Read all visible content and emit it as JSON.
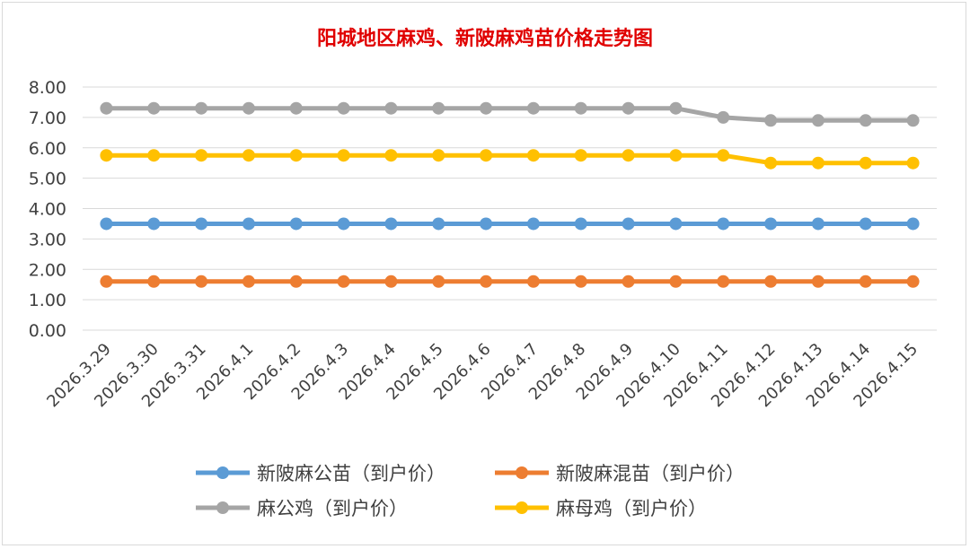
{
  "chart_data": {
    "type": "line",
    "title": "阳城地区麻鸡、新陂麻鸡苗价格走势图",
    "xlabel": "",
    "ylabel": "",
    "ylim": [
      0,
      8
    ],
    "yticks": [
      "0.00",
      "1.00",
      "2.00",
      "3.00",
      "4.00",
      "5.00",
      "6.00",
      "7.00",
      "8.00"
    ],
    "grid": true,
    "legend_position": "bottom",
    "categories": [
      "2026.3.29",
      "2026.3.30",
      "2026.3.31",
      "2026.4.1",
      "2026.4.2",
      "2026.4.3",
      "2026.4.4",
      "2026.4.5",
      "2026.4.6",
      "2026.4.7",
      "2026.4.8",
      "2026.4.9",
      "2026.4.10",
      "2026.4.11",
      "2026.4.12",
      "2026.4.13",
      "2026.4.14",
      "2026.4.15"
    ],
    "series": [
      {
        "name": "新陂麻公苗（到户价）",
        "color": "#5b9bd5",
        "values": [
          3.5,
          3.5,
          3.5,
          3.5,
          3.5,
          3.5,
          3.5,
          3.5,
          3.5,
          3.5,
          3.5,
          3.5,
          3.5,
          3.5,
          3.5,
          3.5,
          3.5,
          3.5
        ]
      },
      {
        "name": "新陂麻混苗（到户价）",
        "color": "#ed7d31",
        "values": [
          1.6,
          1.6,
          1.6,
          1.6,
          1.6,
          1.6,
          1.6,
          1.6,
          1.6,
          1.6,
          1.6,
          1.6,
          1.6,
          1.6,
          1.6,
          1.6,
          1.6,
          1.6
        ]
      },
      {
        "name": "麻公鸡（到户价）",
        "color": "#a5a5a5",
        "values": [
          7.3,
          7.3,
          7.3,
          7.3,
          7.3,
          7.3,
          7.3,
          7.3,
          7.3,
          7.3,
          7.3,
          7.3,
          7.3,
          7.0,
          6.9,
          6.9,
          6.9,
          6.9
        ]
      },
      {
        "name": "麻母鸡（到户价）",
        "color": "#ffc000",
        "values": [
          5.75,
          5.75,
          5.75,
          5.75,
          5.75,
          5.75,
          5.75,
          5.75,
          5.75,
          5.75,
          5.75,
          5.75,
          5.75,
          5.75,
          5.5,
          5.5,
          5.5,
          5.5
        ]
      }
    ]
  }
}
